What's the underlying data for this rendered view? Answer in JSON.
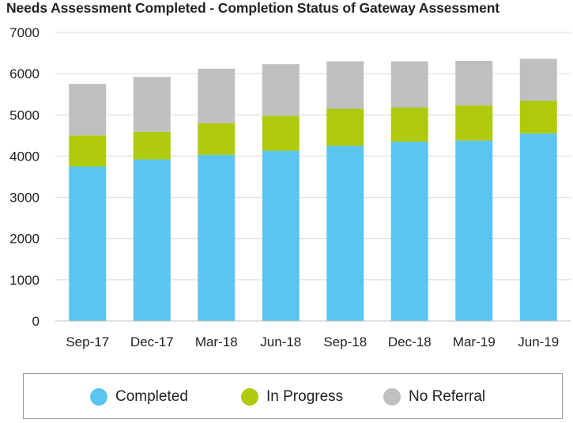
{
  "chart_data": {
    "type": "bar",
    "stacked": true,
    "title": "Needs Assessment Completed - Completion Status of Gateway Assessment",
    "categories": [
      "Sep-17",
      "Dec-17",
      "Mar-18",
      "Jun-18",
      "Sep-18",
      "Dec-18",
      "Mar-19",
      "Jun-19"
    ],
    "series": [
      {
        "name": "Completed",
        "color": "#5bc5f2",
        "values": [
          3750,
          3920,
          4030,
          4130,
          4250,
          4350,
          4380,
          4550
        ]
      },
      {
        "name": "In Progress",
        "color": "#afca0b",
        "values": [
          750,
          670,
          770,
          850,
          900,
          830,
          850,
          790
        ]
      },
      {
        "name": "No Referral",
        "color": "#bfbfbf",
        "values": [
          1250,
          1330,
          1320,
          1250,
          1150,
          1120,
          1080,
          1020
        ]
      }
    ],
    "ylim": [
      0,
      7000
    ],
    "yticks": [
      "0",
      "1000",
      "2000",
      "3000",
      "4000",
      "5000",
      "6000",
      "7000"
    ],
    "xlabel": "",
    "ylabel": "",
    "grid": true,
    "legend_position": "bottom"
  }
}
